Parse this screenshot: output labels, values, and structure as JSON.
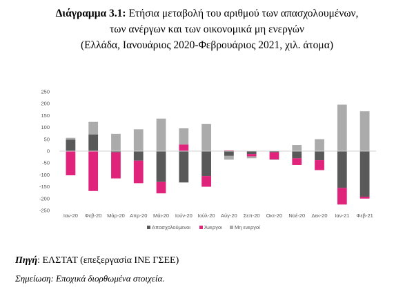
{
  "header": {
    "title_lead": "Διάγραμμα 3.1:",
    "title_rest": "Ετήσια μεταβολή του αριθμού των απασχολουμένων,",
    "title_line2": "των ανέργων και των οικονομικά μη ενεργών",
    "title_line3": "(Ελλάδα, Ιανουάριος 2020-Φεβρουάριος 2021, χιλ. άτομα)"
  },
  "footer": {
    "source_label": "Πηγή",
    "source_text": ": ΕΛΣΤΑΤ (επεξεργασία ΙΝΕ ΓΣΕΕ)",
    "note_text": "Σημείωση: Εποχικά διορθωμένα στοιχεία."
  },
  "chart_data": {
    "type": "bar",
    "stacked": true,
    "categories": [
      "Ιαν-20",
      "Φεβ-20",
      "Μάρ-20",
      "Απρ-20",
      "Μάι-20",
      "Ιούν-20",
      "Ιούλ-20",
      "Αύγ-20",
      "Σεπ-20",
      "Οκτ-20",
      "Νοέ-20",
      "Δεκ-20",
      "Ιαν-21",
      "Φεβ-21"
    ],
    "series": [
      {
        "name": "Απασχολούμενοι",
        "color": "#595959",
        "values": [
          48,
          70,
          -5,
          -40,
          -130,
          -132,
          -105,
          -20,
          -12,
          -5,
          -30,
          -38,
          -155,
          -192
        ]
      },
      {
        "name": "Άνεργοι",
        "color": "#e0237b",
        "values": [
          -102,
          -168,
          -110,
          -95,
          -48,
          28,
          -45,
          3,
          -10,
          -30,
          -28,
          -42,
          -70,
          -8
        ]
      },
      {
        "name": "Μη ενεργοί",
        "color": "#ababab",
        "values": [
          8,
          53,
          73,
          92,
          137,
          68,
          114,
          -16,
          -8,
          -2,
          26,
          50,
          196,
          168
        ]
      }
    ],
    "ylim": [
      -250,
      250
    ],
    "yticks": [
      -250,
      -200,
      -150,
      -100,
      -50,
      0,
      50,
      100,
      150,
      200,
      250
    ],
    "grid": false,
    "legend": "bottom"
  }
}
